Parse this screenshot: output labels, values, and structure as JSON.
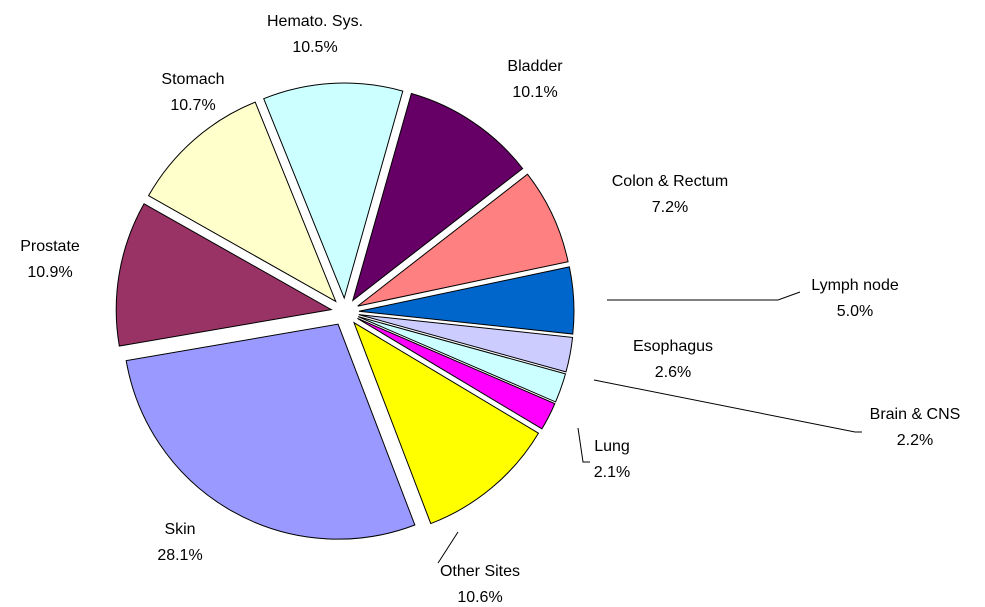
{
  "chart_data": {
    "type": "pie",
    "categories": [
      "Hemato. Sys.",
      "Bladder",
      "Colon & Rectum",
      "Lymph node",
      "Esophagus",
      "Brain & CNS",
      "Lung",
      "Other Sites",
      "Skin",
      "Prostate",
      "Stomach"
    ],
    "values": [
      10.5,
      10.1,
      7.2,
      5.0,
      2.6,
      2.2,
      2.1,
      10.6,
      28.1,
      10.9,
      10.7
    ],
    "value_labels": [
      "10.5%",
      "10.1%",
      "7.2%",
      "5.0%",
      "2.6%",
      "2.2%",
      "2.1%",
      "10.6%",
      "28.1%",
      "10.9%",
      "10.7%"
    ],
    "colors": [
      "#ccffff",
      "#660066",
      "#ff8080",
      "#0066cc",
      "#ccccff",
      "#ccffff",
      "#ff00ff",
      "#ffff00",
      "#9999ff",
      "#993366",
      "#ffffcc"
    ]
  }
}
